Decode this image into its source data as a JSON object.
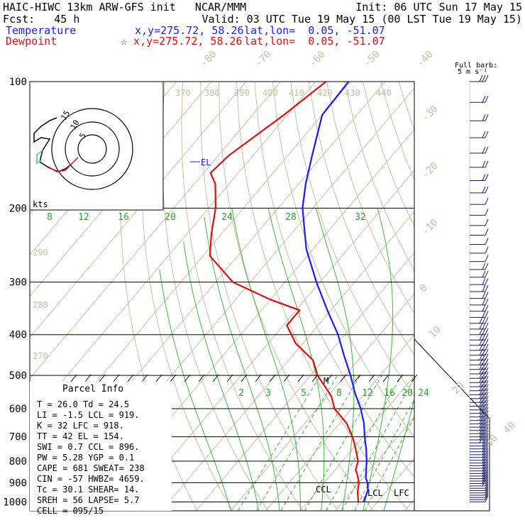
{
  "header": {
    "title": "HAIC-HIWC 13km ARW-GFS init   NCAR/MMM",
    "init": "Init: 06 UTC Sun 17 May 15",
    "fcst": "Fcst:   45 h",
    "valid": "Valid: 03 UTC Tue 19 May 15 (00 LST Tue 19 May 15)",
    "temp_label": "Temperature",
    "temp_xy": "x,y=275.72, 58.26",
    "temp_latlon": "lat,lon=  0.05, -51.07",
    "dew_label": "Dewpoint",
    "dew_xy": "☆ x,y=275.72, 58.26",
    "dew_latlon": "lat,lon=  0.05, -51.07",
    "barb_title_1": "Full barb:",
    "barb_title_2": "5 m s⁻¹"
  },
  "parcel": {
    "title": "Parcel Info",
    "rows": [
      "T  =   26.0  Td =  24.5",
      "LI =   -1.5  LCL =  919.",
      "K  =     32  LFC =  918.",
      "TT =     42  EL  =  154.",
      "SWI =   0.7  CCL =  896.",
      "PW =   5.28  YGP =   0.1",
      "CAPE =   681  SWEAT=  238",
      "CIN =   -57  HWBZ= 4659.",
      "Tc =   30.1  SHEAR=  14.",
      "SREH =   56  LAPSE=  5.7",
      "CELL = 095/15"
    ]
  },
  "hodograph": {
    "unit": "kts",
    "rings": [
      "5",
      "10",
      "15"
    ]
  },
  "levels": {
    "EL": "EL",
    "M": "M",
    "CCL": "CCL",
    "LCL": "LCL",
    "LFC": "LFC"
  },
  "chart_data": {
    "type": "line",
    "title": "Skew-T log-P sounding",
    "ylabel": "",
    "pressure_ticks": [
      100,
      200,
      300,
      400,
      500,
      600,
      700,
      800,
      900,
      1000
    ],
    "isotherm_labels": [
      "-80",
      "-70",
      "-60",
      "-50",
      "-40",
      "-30",
      "-20",
      "-10",
      "0",
      "10",
      "20",
      "30",
      "40"
    ],
    "theta_labels": [
      "370",
      "380",
      "390",
      "400",
      "410",
      "420",
      "430",
      "440",
      "290",
      "280",
      "270"
    ],
    "mixing_ratio_labels_upper": [
      "8",
      "12",
      "16",
      "20",
      "24",
      "28",
      "32"
    ],
    "mixing_ratio_labels_lower": [
      "2",
      "3",
      "5",
      "8",
      "12",
      "16",
      "20",
      "24"
    ],
    "series": [
      {
        "name": "Temperature",
        "color": "#1a1aff",
        "points": [
          [
            100,
            -80.5
          ],
          [
            120,
            -80
          ],
          [
            150,
            -73
          ],
          [
            175,
            -68
          ],
          [
            200,
            -63
          ],
          [
            250,
            -52
          ],
          [
            300,
            -41
          ],
          [
            350,
            -31
          ],
          [
            400,
            -22
          ],
          [
            450,
            -15
          ],
          [
            500,
            -8.5
          ],
          [
            550,
            -3
          ],
          [
            600,
            2.5
          ],
          [
            650,
            7
          ],
          [
            700,
            10.5
          ],
          [
            750,
            14
          ],
          [
            800,
            17
          ],
          [
            850,
            19.5
          ],
          [
            880,
            21
          ],
          [
            900,
            22.5
          ],
          [
            940,
            24.5
          ],
          [
            1000,
            26
          ]
        ]
      },
      {
        "name": "Dewpoint",
        "color": "#e01010",
        "points": [
          [
            100,
            -87
          ],
          [
            120,
            -91
          ],
          [
            150,
            -97
          ],
          [
            165,
            -98
          ],
          [
            175,
            -94
          ],
          [
            200,
            -88
          ],
          [
            230,
            -83
          ],
          [
            260,
            -78
          ],
          [
            300,
            -65
          ],
          [
            330,
            -50
          ],
          [
            350,
            -39
          ],
          [
            380,
            -39
          ],
          [
            420,
            -32
          ],
          [
            460,
            -23
          ],
          [
            500,
            -18
          ],
          [
            560,
            -9
          ],
          [
            600,
            -5
          ],
          [
            650,
            2
          ],
          [
            700,
            7
          ],
          [
            750,
            11
          ],
          [
            800,
            14.5
          ],
          [
            840,
            16
          ],
          [
            860,
            17.5
          ],
          [
            900,
            20
          ],
          [
            950,
            22
          ],
          [
            1000,
            24.5
          ]
        ]
      }
    ],
    "wind_profile_kt": [
      [
        100,
        15,
        240
      ],
      [
        120,
        12,
        250
      ],
      [
        150,
        10,
        240
      ],
      [
        175,
        8,
        250
      ],
      [
        200,
        6,
        260
      ],
      [
        250,
        7,
        270
      ],
      [
        300,
        10,
        270
      ],
      [
        350,
        12,
        280
      ],
      [
        400,
        14,
        290
      ],
      [
        450,
        15,
        300
      ],
      [
        500,
        16,
        310
      ],
      [
        550,
        16,
        320
      ],
      [
        600,
        17,
        330
      ],
      [
        650,
        15,
        340
      ],
      [
        700,
        14,
        350
      ],
      [
        750,
        12,
        360
      ],
      [
        800,
        10,
        360
      ],
      [
        850,
        10,
        20
      ],
      [
        900,
        8,
        40
      ],
      [
        950,
        6,
        60
      ],
      [
        1000,
        5,
        80
      ]
    ]
  }
}
